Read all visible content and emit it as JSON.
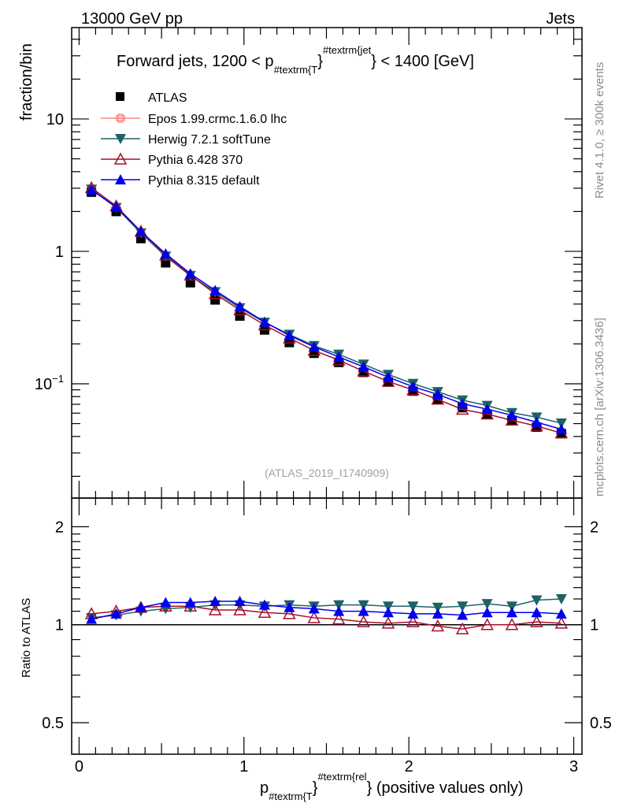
{
  "header": {
    "left": "13000 GeV pp",
    "right": "Jets"
  },
  "side_text": {
    "top": "Rivet 4.1.0, ≥ 300k events",
    "bottom": "mcplots.cern.ch [arXiv:1306.3436]"
  },
  "watermark": "(ATLAS_2019_I1740909)",
  "title_parts": {
    "a": "Forward jets, 1200 < p",
    "sub": "#textrm{T",
    "b": "}",
    "sup": "#textrm{jet",
    "c": "} < 1400 [GeV]"
  },
  "xlabel_parts": {
    "a": "p",
    "sub": "#textrm{T",
    "b": "}",
    "sup": "#textrm{rel",
    "c": "} (positive values only)"
  },
  "chart_data": [
    {
      "type": "line",
      "panel": "main",
      "ylabel": "fraction/bin",
      "yscale": "log",
      "ylim": [
        0.0137,
        49
      ],
      "xlim": [
        -0.045,
        3.05
      ],
      "yticks": [
        {
          "v": 0.1,
          "label_base": "10",
          "label_exp": "−1"
        },
        {
          "v": 1,
          "label": "1"
        },
        {
          "v": 10,
          "label": "10"
        }
      ],
      "x": [
        0.075,
        0.225,
        0.375,
        0.525,
        0.675,
        0.825,
        0.975,
        1.125,
        1.275,
        1.425,
        1.575,
        1.725,
        1.875,
        2.025,
        2.175,
        2.325,
        2.475,
        2.625,
        2.775,
        2.925
      ],
      "data": {
        "name": "ATLAS",
        "color": "#000000",
        "marker": "square",
        "values": [
          2.8,
          2.0,
          1.25,
          0.82,
          0.58,
          0.43,
          0.325,
          0.255,
          0.205,
          0.17,
          0.145,
          0.122,
          0.103,
          0.088,
          0.077,
          0.066,
          0.059,
          0.053,
          0.047,
          0.042
        ]
      },
      "legend_position": "top-left",
      "series_main_note": "MC main-panel values = ATLAS value x ratio"
    },
    {
      "type": "line",
      "panel": "ratio",
      "ylabel": "Ratio to ATLAS",
      "yscale": "log",
      "ylim": [
        0.4,
        2.45
      ],
      "yticks": [
        {
          "v": 0.5,
          "label": "0.5"
        },
        {
          "v": 1,
          "label": "1"
        },
        {
          "v": 2,
          "label": "2"
        }
      ],
      "xticks": [
        0,
        1,
        2,
        3
      ],
      "xtick_labels": [
        "0",
        "1",
        "2",
        "3"
      ],
      "series": [
        {
          "name": "Epos 1.99.crmc.1.6.0 lhc",
          "color": "#ff8080",
          "marker": "open-cross",
          "values": []
        },
        {
          "name": "Herwig 7.2.1 softTune",
          "color": "#1f6266",
          "marker": "triangle-down",
          "values": [
            1.05,
            1.07,
            1.1,
            1.12,
            1.13,
            1.15,
            1.15,
            1.14,
            1.15,
            1.14,
            1.15,
            1.15,
            1.14,
            1.14,
            1.13,
            1.14,
            1.16,
            1.14,
            1.19,
            1.2
          ]
        },
        {
          "name": "Pythia 6.428 370",
          "color": "#a50f2d",
          "marker": "triangle-up-open",
          "values": [
            1.08,
            1.1,
            1.13,
            1.14,
            1.14,
            1.11,
            1.11,
            1.09,
            1.08,
            1.05,
            1.04,
            1.02,
            1.01,
            1.02,
            0.99,
            0.97,
            1.0,
            1.0,
            1.02,
            1.01
          ]
        },
        {
          "name": "Pythia 8.315 default",
          "color": "#0000ee",
          "marker": "triangle-up",
          "values": [
            1.04,
            1.08,
            1.13,
            1.17,
            1.17,
            1.18,
            1.18,
            1.15,
            1.13,
            1.12,
            1.1,
            1.1,
            1.09,
            1.08,
            1.08,
            1.07,
            1.09,
            1.09,
            1.09,
            1.08
          ]
        }
      ]
    }
  ]
}
